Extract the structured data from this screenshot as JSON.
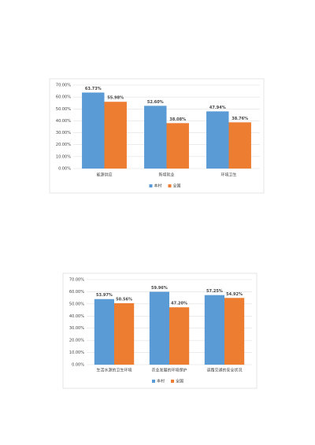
{
  "chart_data": [
    {
      "type": "bar",
      "categories": [
        "能源供应",
        "新增就业",
        "环境卫生"
      ],
      "series": [
        {
          "name": "本村",
          "color": "#5b9bd5",
          "values": [
            63.73,
            52.6,
            47.94
          ],
          "value_labels": [
            "63.73%",
            "52.60%",
            "47.94%"
          ]
        },
        {
          "name": "全国",
          "color": "#ed7d31",
          "values": [
            55.98,
            38.08,
            38.76
          ],
          "value_labels": [
            "55.98%",
            "38.08%",
            "38.76%"
          ]
        }
      ],
      "ylim": [
        0,
        70
      ],
      "yticks": [
        {
          "value": 0,
          "label": "0.00%"
        },
        {
          "value": 10,
          "label": "10.00%"
        },
        {
          "value": 20,
          "label": "20.00%"
        },
        {
          "value": 30,
          "label": "30.00%"
        },
        {
          "value": 40,
          "label": "40.00%"
        },
        {
          "value": 50,
          "label": "50.00%"
        },
        {
          "value": 60,
          "label": "60.00%"
        },
        {
          "value": 70,
          "label": "70.00%"
        }
      ],
      "grid": true,
      "legend": "bottom"
    },
    {
      "type": "bar",
      "categories": [
        "生活水源的卫生环境",
        "农业发展的环境保护",
        "道路交通的安全状况"
      ],
      "series": [
        {
          "name": "本村",
          "color": "#5b9bd5",
          "values": [
            53.97,
            59.96,
            57.25
          ],
          "value_labels": [
            "53.97%",
            "59.96%",
            "57.25%"
          ]
        },
        {
          "name": "全国",
          "color": "#ed7d31",
          "values": [
            50.56,
            47.2,
            54.92
          ],
          "value_labels": [
            "50.56%",
            "47.20%",
            "54.92%"
          ]
        }
      ],
      "ylim": [
        0,
        70
      ],
      "yticks": [
        {
          "value": 0,
          "label": "0.00%"
        },
        {
          "value": 10,
          "label": "10.00%"
        },
        {
          "value": 20,
          "label": "20.00%"
        },
        {
          "value": 30,
          "label": "30.00%"
        },
        {
          "value": 40,
          "label": "40.00%"
        },
        {
          "value": 50,
          "label": "50.00%"
        },
        {
          "value": 60,
          "label": "60.00%"
        },
        {
          "value": 70,
          "label": "70.00%"
        }
      ],
      "grid": true,
      "legend": "bottom"
    }
  ]
}
